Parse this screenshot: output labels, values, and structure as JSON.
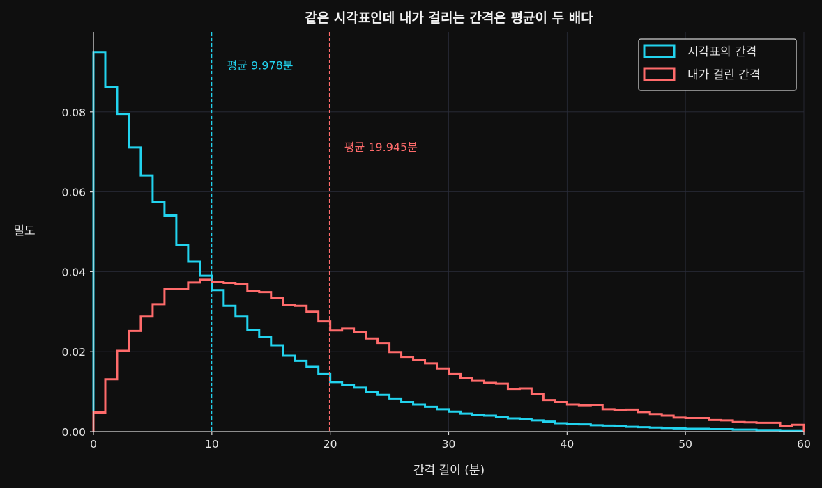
{
  "chart_data": {
    "type": "histogram-step",
    "title": "같은 시각표인데 내가 걸리는 간격은 평균이 두 배다",
    "xlabel": "간격 길이 (분)",
    "ylabel": "밀도",
    "xlim": [
      0,
      60
    ],
    "ylim": [
      0,
      0.1
    ],
    "xticks": [
      0,
      10,
      20,
      30,
      40,
      50,
      60
    ],
    "yticks": [
      0.0,
      0.02,
      0.04,
      0.06,
      0.08
    ],
    "xtick_labels": [
      "0",
      "10",
      "20",
      "30",
      "40",
      "50",
      "60"
    ],
    "ytick_labels": [
      "0.00",
      "0.02",
      "0.04",
      "0.06",
      "0.08"
    ],
    "grid": true,
    "legend_position": "top-right",
    "bin_edges": [
      0,
      1,
      2,
      3,
      4,
      5,
      6,
      7,
      8,
      9,
      10,
      11,
      12,
      13,
      14,
      15,
      16,
      17,
      18,
      19,
      20,
      21,
      22,
      23,
      24,
      25,
      26,
      27,
      28,
      29,
      30,
      31,
      32,
      33,
      34,
      35,
      36,
      37,
      38,
      39,
      40,
      41,
      42,
      43,
      44,
      45,
      46,
      47,
      48,
      49,
      50,
      51,
      52,
      53,
      54,
      55,
      56,
      57,
      58,
      59,
      60
    ],
    "series": [
      {
        "name": "시각표의 간격",
        "color": "#22d3ee",
        "values": [
          0.095,
          0.0862,
          0.0795,
          0.0711,
          0.0641,
          0.0574,
          0.0541,
          0.0467,
          0.0425,
          0.039,
          0.0354,
          0.0315,
          0.0288,
          0.0254,
          0.0237,
          0.0216,
          0.019,
          0.0177,
          0.0162,
          0.0144,
          0.0124,
          0.0117,
          0.011,
          0.0099,
          0.0092,
          0.0083,
          0.0074,
          0.0068,
          0.0062,
          0.0056,
          0.005,
          0.0045,
          0.0042,
          0.004,
          0.0036,
          0.0033,
          0.0031,
          0.0028,
          0.0025,
          0.0021,
          0.0019,
          0.0018,
          0.0016,
          0.0015,
          0.0013,
          0.0012,
          0.0011,
          0.001,
          0.0009,
          0.0008,
          0.0007,
          0.0007,
          0.0006,
          0.0006,
          0.0005,
          0.0005,
          0.0004,
          0.0004,
          0.0003,
          0.0003
        ],
        "mean_label": "평균 9.978분",
        "mean": 9.978
      },
      {
        "name": "내가 걸린 간격",
        "color": "#ff6b6b",
        "values": [
          0.0048,
          0.0131,
          0.0202,
          0.0252,
          0.0288,
          0.0319,
          0.0358,
          0.0358,
          0.0373,
          0.038,
          0.0374,
          0.0372,
          0.037,
          0.0352,
          0.0349,
          0.0334,
          0.0318,
          0.0315,
          0.03,
          0.0276,
          0.0253,
          0.0258,
          0.025,
          0.0233,
          0.0222,
          0.0199,
          0.0187,
          0.018,
          0.0171,
          0.0158,
          0.0144,
          0.0134,
          0.0127,
          0.0122,
          0.012,
          0.0107,
          0.0108,
          0.0094,
          0.0079,
          0.0074,
          0.0068,
          0.0066,
          0.0067,
          0.0056,
          0.0054,
          0.0055,
          0.0049,
          0.0044,
          0.004,
          0.0035,
          0.0034,
          0.0034,
          0.0029,
          0.0028,
          0.0024,
          0.0023,
          0.0022,
          0.0022,
          0.0013,
          0.0017
        ],
        "mean_label": "평균 19.945분",
        "mean": 19.945
      }
    ]
  },
  "colors": {
    "background": "#0f0f0f",
    "axes": "#d9d9d9",
    "grid": "#2a2d3a"
  }
}
